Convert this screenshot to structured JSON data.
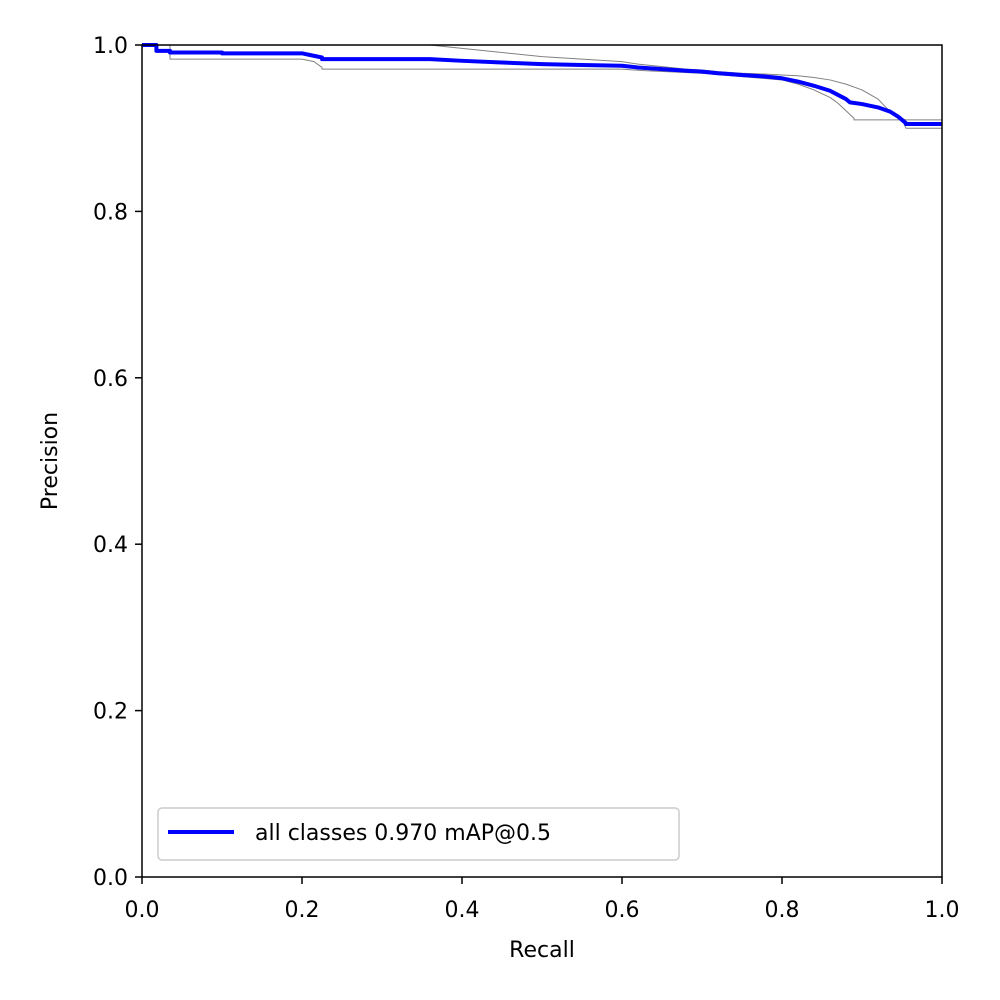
{
  "chart_data": {
    "type": "line",
    "title": "",
    "xlabel": "Recall",
    "ylabel": "Precision",
    "xlim": [
      0,
      1
    ],
    "ylim": [
      0,
      1
    ],
    "xticks": [
      "0.0",
      "0.2",
      "0.4",
      "0.6",
      "0.8",
      "1.0"
    ],
    "yticks": [
      "0.0",
      "0.2",
      "0.4",
      "0.6",
      "0.8",
      "1.0"
    ],
    "grid": false,
    "legend_position": "lower-left",
    "series": [
      {
        "name": "all classes 0.970 mAP@0.5",
        "color": "#0000ff",
        "in_legend": true,
        "x": [
          0.0,
          0.018,
          0.018,
          0.035,
          0.035,
          0.1,
          0.1,
          0.2,
          0.21,
          0.225,
          0.225,
          0.36,
          0.4,
          0.45,
          0.5,
          0.55,
          0.6,
          0.62,
          0.65,
          0.68,
          0.7,
          0.72,
          0.75,
          0.78,
          0.8,
          0.82,
          0.84,
          0.86,
          0.87,
          0.88,
          0.885,
          0.9,
          0.92,
          0.935,
          0.945,
          0.955,
          0.955,
          1.0
        ],
        "y": [
          1.0,
          1.0,
          0.993,
          0.993,
          0.991,
          0.991,
          0.99,
          0.99,
          0.988,
          0.985,
          0.983,
          0.983,
          0.981,
          0.979,
          0.977,
          0.976,
          0.975,
          0.973,
          0.971,
          0.969,
          0.968,
          0.966,
          0.964,
          0.962,
          0.96,
          0.956,
          0.951,
          0.945,
          0.94,
          0.935,
          0.931,
          0.929,
          0.925,
          0.92,
          0.914,
          0.906,
          0.905,
          0.905
        ]
      },
      {
        "name": "",
        "color": "#808080",
        "in_legend": false,
        "x": [
          0.0,
          0.035,
          0.035,
          0.2,
          0.215,
          0.225,
          0.225,
          0.36,
          0.6,
          0.63,
          0.7,
          0.75,
          0.8,
          0.82,
          0.84,
          0.86,
          0.87,
          0.88,
          0.89,
          0.89,
          0.95,
          0.955,
          1.0
        ],
        "y": [
          1.0,
          1.0,
          0.983,
          0.983,
          0.98,
          0.973,
          0.971,
          0.971,
          0.971,
          0.969,
          0.966,
          0.962,
          0.958,
          0.953,
          0.946,
          0.937,
          0.93,
          0.921,
          0.912,
          0.91,
          0.91,
          0.9,
          0.9
        ]
      },
      {
        "name": "",
        "color": "#808080",
        "in_legend": false,
        "x": [
          0.0,
          0.36,
          0.4,
          0.45,
          0.5,
          0.55,
          0.6,
          0.62,
          0.65,
          0.68,
          0.7,
          0.72,
          0.75,
          0.78,
          0.8,
          0.82,
          0.84,
          0.86,
          0.88,
          0.9,
          0.92,
          0.935,
          0.945,
          0.955,
          0.955,
          1.0
        ],
        "y": [
          1.0,
          1.0,
          0.996,
          0.991,
          0.986,
          0.983,
          0.98,
          0.977,
          0.974,
          0.971,
          0.97,
          0.968,
          0.966,
          0.965,
          0.964,
          0.963,
          0.961,
          0.958,
          0.953,
          0.946,
          0.935,
          0.92,
          0.912,
          0.91,
          0.91,
          0.91
        ]
      }
    ]
  }
}
